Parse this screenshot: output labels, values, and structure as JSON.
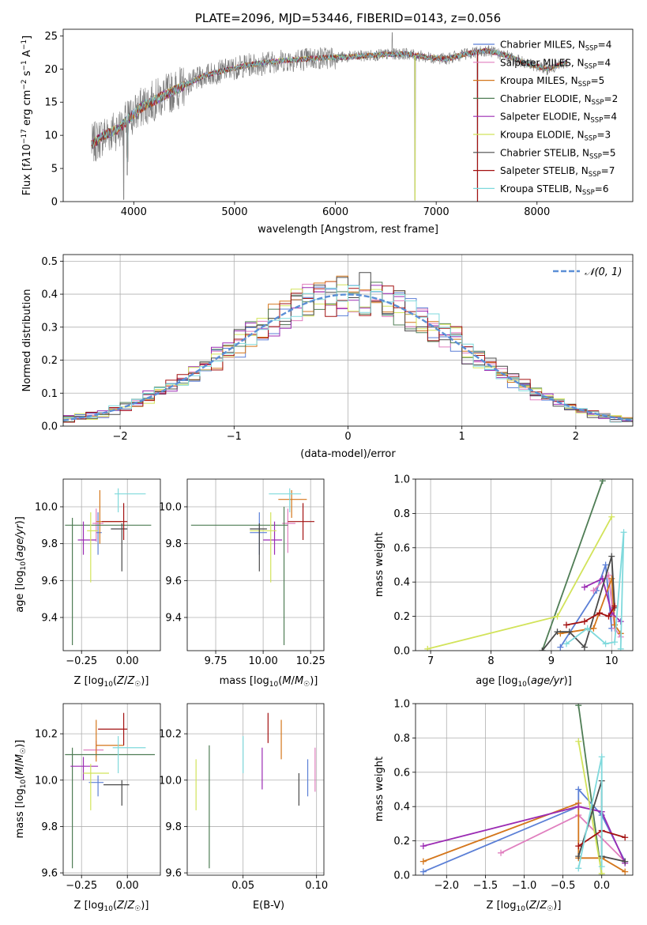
{
  "colors": {
    "Chabrier MILES": "#5b7fd6",
    "Salpeter MILES": "#e07fbf",
    "Kroupa MILES": "#d4761b",
    "Chabrier ELODIE": "#4f7d55",
    "Salpeter ELODIE": "#9b2bb3",
    "Kroupa ELODIE": "#d2e35a",
    "Chabrier STELIB": "#4a4a4a",
    "Salpeter STELIB": "#a31111",
    "Kroupa STELIB": "#7fd9dc",
    "normal": "#5b8fd6",
    "grid": "#b0b0b0"
  },
  "chart_data": [
    {
      "type": "line",
      "title": "PLATE=2096, MJD=53446, FIBERID=0143, z=0.056",
      "xlabel": "wavelength [Angstrom, rest frame]",
      "ylabel_parts": [
        "Flux [f",
        "λ",
        "10",
        "−17",
        " erg cm",
        "−2",
        " s",
        "−1",
        " A",
        "−1",
        "]"
      ],
      "xlim": [
        3300,
        8950
      ],
      "ylim": [
        0,
        26
      ],
      "xticks": [
        4000,
        5000,
        6000,
        7000,
        8000
      ],
      "xtick_labels": [
        "4000",
        "5000",
        "6000",
        "7000",
        "8000"
      ],
      "yticks": [
        0,
        5,
        10,
        15,
        20,
        25
      ],
      "ytick_labels": [
        "0",
        "5",
        "10",
        "15",
        "20",
        "25"
      ],
      "grid": false,
      "legend_position": "right",
      "legend": [
        {
          "name": "Chabrier MILES",
          "nssp": "4"
        },
        {
          "name": "Salpeter MILES",
          "nssp": "4"
        },
        {
          "name": "Kroupa MILES",
          "nssp": "5"
        },
        {
          "name": "Chabrier ELODIE",
          "nssp": "2"
        },
        {
          "name": "Salpeter ELODIE",
          "nssp": "4"
        },
        {
          "name": "Kroupa ELODIE",
          "nssp": "3"
        },
        {
          "name": "Chabrier STELIB",
          "nssp": "5"
        },
        {
          "name": "Salpeter STELIB",
          "nssp": "7"
        },
        {
          "name": "Kroupa STELIB",
          "nssp": "6"
        }
      ],
      "legend_sub": "SSP",
      "legend_prefix": "N",
      "continuum": {
        "x": [
          3580,
          3700,
          3850,
          3950,
          4100,
          4300,
          4500,
          4700,
          4900,
          5100,
          5300,
          5500,
          5700,
          5900,
          6100,
          6300,
          6500,
          6700,
          6900,
          7100,
          7300,
          7500,
          7700,
          7900,
          8100,
          8300
        ],
        "y": [
          8.5,
          10,
          11,
          12.5,
          14.5,
          16,
          17.5,
          19,
          19.8,
          20.5,
          21,
          21.3,
          21.5,
          21.7,
          21.8,
          22,
          22.2,
          22.3,
          21.8,
          21.5,
          22.3,
          22.8,
          22,
          20.8,
          20,
          21
        ]
      },
      "emission_features": [
        {
          "x": 5270,
          "y": 19
        },
        {
          "x": 6563,
          "y": 25.5
        }
      ],
      "absorption_features": [
        {
          "x": 3900,
          "y": 0.3
        },
        {
          "x": 3935,
          "y": 4
        },
        {
          "x": 6790,
          "y": 0.2
        },
        {
          "x": 7410,
          "y": 0
        }
      ]
    },
    {
      "type": "step",
      "xlabel": "(data-model)/error",
      "ylabel": "Normed distribution",
      "xlim": [
        -2.5,
        2.5
      ],
      "ylim": [
        0,
        0.52
      ],
      "xticks": [
        -2,
        -1,
        0,
        1,
        2
      ],
      "xtick_labels": [
        "−2",
        "−1",
        "0",
        "1",
        "2"
      ],
      "yticks": [
        0,
        0.1,
        0.2,
        0.3,
        0.4,
        0.5
      ],
      "ytick_labels": [
        "0.0",
        "0.1",
        "0.2",
        "0.3",
        "0.4",
        "0.5"
      ],
      "grid": true,
      "bin_width": 0.1,
      "legend_label": "𝒩(0, 1)",
      "legend_position": "top-right",
      "normal_curve": {
        "mean": 0,
        "sigma": 1
      }
    },
    {
      "type": "scatter",
      "xlabel": "Z [log10(Z/Z☉)]",
      "ylabel": "age [log10(age/yr)]",
      "xlim": [
        -0.35,
        0.18
      ],
      "ylim": [
        9.22,
        10.15
      ],
      "xticks": [
        -0.25,
        0
      ],
      "xtick_labels": [
        "−0.25",
        "0.00"
      ],
      "yticks": [
        9.4,
        9.6,
        9.8,
        10
      ],
      "ytick_labels": [
        "9.4",
        "9.6",
        "9.8",
        "10.0"
      ],
      "grid": true,
      "points": [
        {
          "model": "Chabrier MILES",
          "x": -0.16,
          "y": 9.86,
          "x0": -0.17,
          "x1": -0.14,
          "y0": 9.74,
          "y1": 9.97
        },
        {
          "model": "Salpeter MILES",
          "x": -0.17,
          "y": 9.91,
          "x0": -0.19,
          "x1": -0.13,
          "y0": 9.81,
          "y1": 9.99
        },
        {
          "model": "Kroupa MILES",
          "x": -0.15,
          "y": 9.92,
          "x0": -0.17,
          "x1": -0.03,
          "y0": 9.8,
          "y1": 10.09
        },
        {
          "model": "Chabrier ELODIE",
          "x": -0.3,
          "y": 9.9,
          "x0": -0.34,
          "x1": 0.13,
          "y0": 9.25,
          "y1": 9.94
        },
        {
          "model": "Salpeter ELODIE",
          "x": -0.24,
          "y": 9.82,
          "x0": -0.27,
          "x1": -0.17,
          "y0": 9.74,
          "y1": 9.92
        },
        {
          "model": "Kroupa ELODIE",
          "x": -0.2,
          "y": 9.87,
          "x0": -0.22,
          "x1": -0.16,
          "y0": 9.59,
          "y1": 9.97
        },
        {
          "model": "Chabrier STELIB",
          "x": -0.03,
          "y": 9.88,
          "x0": -0.09,
          "x1": 0.0,
          "y0": 9.65,
          "y1": 9.91
        },
        {
          "model": "Salpeter STELIB",
          "x": -0.02,
          "y": 9.92,
          "x0": -0.14,
          "x1": 0.0,
          "y0": 9.82,
          "y1": 10.02
        },
        {
          "model": "Kroupa STELIB",
          "x": -0.05,
          "y": 10.07,
          "x0": -0.07,
          "x1": 0.1,
          "y0": 9.97,
          "y1": 10.1
        }
      ]
    },
    {
      "type": "scatter",
      "xlabel": "mass [log10(M/M☉)]",
      "ylabel": "",
      "xlim": [
        9.6,
        10.32
      ],
      "ylim": [
        9.22,
        10.15
      ],
      "xticks": [
        9.75,
        10,
        10.25
      ],
      "xtick_labels": [
        "9.75",
        "10.00",
        "10.25"
      ],
      "yticks": [
        9.4,
        9.6,
        9.8,
        10
      ],
      "ytick_labels": [
        "9.4",
        "9.6",
        "9.8",
        "10.0"
      ],
      "grid": true,
      "points": [
        {
          "model": "Chabrier MILES",
          "x": 9.98,
          "y": 9.86,
          "x0": 9.93,
          "x1": 10.02,
          "y0": 9.74,
          "y1": 9.97
        },
        {
          "model": "Salpeter MILES",
          "x": 10.13,
          "y": 9.91,
          "x0": 10.1,
          "x1": 10.17,
          "y0": 9.75,
          "y1": 9.99
        },
        {
          "model": "Kroupa MILES",
          "x": 10.15,
          "y": 10.04,
          "x0": 10.08,
          "x1": 10.23,
          "y0": 9.94,
          "y1": 10.09
        },
        {
          "model": "Chabrier ELODIE",
          "x": 10.11,
          "y": 9.9,
          "x0": 9.62,
          "x1": 10.13,
          "y0": 9.25,
          "y1": 10.0
        },
        {
          "model": "Salpeter ELODIE",
          "x": 10.06,
          "y": 9.82,
          "x0": 10.0,
          "x1": 10.1,
          "y0": 9.74,
          "y1": 9.92
        },
        {
          "model": "Kroupa ELODIE",
          "x": 10.04,
          "y": 9.87,
          "x0": 9.93,
          "x1": 10.07,
          "y0": 9.59,
          "y1": 9.97
        },
        {
          "model": "Chabrier STELIB",
          "x": 9.98,
          "y": 9.88,
          "x0": 9.93,
          "x1": 10.02,
          "y0": 9.65,
          "y1": 9.91
        },
        {
          "model": "Salpeter STELIB",
          "x": 10.21,
          "y": 9.92,
          "x0": 10.13,
          "x1": 10.27,
          "y0": 9.82,
          "y1": 10.02
        },
        {
          "model": "Kroupa STELIB",
          "x": 10.14,
          "y": 10.07,
          "x0": 10.03,
          "x1": 10.2,
          "y0": 9.97,
          "y1": 10.1
        }
      ]
    },
    {
      "type": "line",
      "xlabel": "age [log10(age/yr)]",
      "ylabel": "mass weight",
      "xlim": [
        6.75,
        10.35
      ],
      "ylim": [
        0,
        1
      ],
      "xticks": [
        7,
        8,
        9,
        10
      ],
      "xtick_labels": [
        "7",
        "8",
        "9",
        "10"
      ],
      "yticks": [
        0,
        0.2,
        0.4,
        0.6,
        0.8,
        1
      ],
      "ytick_labels": [
        "0.0",
        "0.2",
        "0.4",
        "0.6",
        "0.8",
        "1.0"
      ],
      "grid": true,
      "marker": "+",
      "series": [
        {
          "model": "Chabrier MILES",
          "x": [
            9.15,
            9.75,
            9.9,
            10.0
          ],
          "y": [
            0.02,
            0.35,
            0.5,
            0.13
          ]
        },
        {
          "model": "Salpeter MILES",
          "x": [
            9.7,
            9.95,
            10.05,
            10.15
          ],
          "y": [
            0.35,
            0.44,
            0.13,
            0.08
          ]
        },
        {
          "model": "Kroupa MILES",
          "x": [
            9.15,
            9.7,
            10.0,
            10.05,
            10.15
          ],
          "y": [
            0.1,
            0.13,
            0.42,
            0.15,
            0.1
          ]
        },
        {
          "model": "Chabrier ELODIE",
          "x": [
            8.85,
            9.85
          ],
          "y": [
            0.0,
            0.99
          ]
        },
        {
          "model": "Salpeter ELODIE",
          "x": [
            9.55,
            9.85,
            10.0,
            10.15
          ],
          "y": [
            0.37,
            0.42,
            0.22,
            0.17
          ]
        },
        {
          "model": "Kroupa ELODIE",
          "x": [
            6.95,
            9.1,
            10.0
          ],
          "y": [
            0.01,
            0.2,
            0.78
          ]
        },
        {
          "model": "Chabrier STELIB",
          "x": [
            8.85,
            9.1,
            9.3,
            9.55,
            10.0,
            10.05
          ],
          "y": [
            0.0,
            0.11,
            0.11,
            0.02,
            0.55,
            0.25
          ]
        },
        {
          "model": "Salpeter STELIB",
          "x": [
            9.25,
            9.55,
            9.8,
            9.95,
            10.05
          ],
          "y": [
            0.15,
            0.17,
            0.22,
            0.2,
            0.26
          ]
        },
        {
          "model": "Kroupa STELIB",
          "x": [
            9.25,
            9.6,
            9.9,
            10.05,
            10.2,
            10.15
          ],
          "y": [
            0.04,
            0.13,
            0.04,
            0.05,
            0.69,
            0.01
          ]
        }
      ]
    },
    {
      "type": "scatter",
      "xlabel": "Z [log10(Z/Z☉)]",
      "ylabel": "mass [log10(M/M☉)]",
      "xlim": [
        -0.35,
        0.18
      ],
      "ylim": [
        9.59,
        10.33
      ],
      "xticks": [
        -0.25,
        0
      ],
      "xtick_labels": [
        "−0.25",
        "0.00"
      ],
      "yticks": [
        9.6,
        9.8,
        10,
        10.2
      ],
      "ytick_labels": [
        "9.6",
        "9.8",
        "10.0",
        "10.2"
      ],
      "grid": true,
      "points": [
        {
          "model": "Chabrier MILES",
          "x": -0.16,
          "y": 9.99,
          "x0": -0.21,
          "x1": -0.13,
          "y0": 9.93,
          "y1": 10.02
        },
        {
          "model": "Salpeter MILES",
          "x": -0.17,
          "y": 10.13,
          "x0": -0.24,
          "x1": -0.13,
          "y0": 10.1,
          "y1": 10.17
        },
        {
          "model": "Kroupa MILES",
          "x": -0.17,
          "y": 10.15,
          "x0": -0.17,
          "x1": -0.02,
          "y0": 10.08,
          "y1": 10.26
        },
        {
          "model": "Chabrier ELODIE",
          "x": -0.3,
          "y": 10.11,
          "x0": -0.34,
          "x1": 0.15,
          "y0": 9.62,
          "y1": 10.14
        },
        {
          "model": "Salpeter ELODIE",
          "x": -0.24,
          "y": 10.06,
          "x0": -0.31,
          "x1": -0.16,
          "y0": 10.0,
          "y1": 10.1
        },
        {
          "model": "Kroupa ELODIE",
          "x": -0.2,
          "y": 10.03,
          "x0": -0.24,
          "x1": -0.1,
          "y0": 9.87,
          "y1": 10.07
        },
        {
          "model": "Chabrier STELIB",
          "x": -0.03,
          "y": 9.98,
          "x0": -0.13,
          "x1": 0.01,
          "y0": 9.89,
          "y1": 10.0
        },
        {
          "model": "Salpeter STELIB",
          "x": -0.02,
          "y": 10.22,
          "x0": -0.16,
          "x1": 0.0,
          "y0": 10.15,
          "y1": 10.29
        },
        {
          "model": "Kroupa STELIB",
          "x": -0.05,
          "y": 10.14,
          "x0": -0.08,
          "x1": 0.1,
          "y0": 10.03,
          "y1": 10.19
        }
      ]
    },
    {
      "type": "errorbar",
      "xlabel": "E(B-V)",
      "ylabel": "",
      "xlim": [
        0.012,
        0.105
      ],
      "ylim": [
        9.59,
        10.33
      ],
      "xticks": [
        0.05,
        0.1
      ],
      "xtick_labels": [
        "0.05",
        "0.10"
      ],
      "yticks": [
        9.6,
        9.8,
        10,
        10.2
      ],
      "ytick_labels": [
        "9.6",
        "9.8",
        "10.0",
        "10.2"
      ],
      "grid": true,
      "points": [
        {
          "model": "Chabrier MILES",
          "x": 0.094,
          "y0": 9.93,
          "y1": 10.09
        },
        {
          "model": "Salpeter MILES",
          "x": 0.099,
          "y0": 9.95,
          "y1": 10.14
        },
        {
          "model": "Kroupa MILES",
          "x": 0.076,
          "y0": 10.09,
          "y1": 10.26
        },
        {
          "model": "Chabrier ELODIE",
          "x": 0.027,
          "y0": 9.62,
          "y1": 10.15
        },
        {
          "model": "Salpeter ELODIE",
          "x": 0.063,
          "y0": 9.96,
          "y1": 10.14
        },
        {
          "model": "Kroupa ELODIE",
          "x": 0.018,
          "y0": 9.87,
          "y1": 10.09
        },
        {
          "model": "Chabrier STELIB",
          "x": 0.088,
          "y0": 9.89,
          "y1": 10.03
        },
        {
          "model": "Salpeter STELIB",
          "x": 0.067,
          "y0": 10.16,
          "y1": 10.29
        },
        {
          "model": "Kroupa STELIB",
          "x": 0.05,
          "y0": 10.03,
          "y1": 10.19
        }
      ]
    },
    {
      "type": "line",
      "xlabel": "Z [log10(Z/Z☉)]",
      "ylabel": "mass weight",
      "xlim": [
        -2.4,
        0.4
      ],
      "ylim": [
        0,
        1
      ],
      "xticks": [
        -2,
        -1.5,
        -1,
        -0.5,
        0
      ],
      "xtick_labels": [
        "−2.0",
        "−1.5",
        "−1.0",
        "−0.5",
        "0.0"
      ],
      "yticks": [
        0,
        0.2,
        0.4,
        0.6,
        0.8,
        1
      ],
      "ytick_labels": [
        "0.0",
        "0.2",
        "0.4",
        "0.6",
        "0.8",
        "1.0"
      ],
      "grid": true,
      "marker": "+",
      "series": [
        {
          "model": "Chabrier MILES",
          "x": [
            -2.3,
            -0.3,
            -0.3,
            0.0,
            0.3
          ],
          "y": [
            0.02,
            0.4,
            0.5,
            0.35,
            0.08
          ]
        },
        {
          "model": "Salpeter MILES",
          "x": [
            -1.3,
            -0.3,
            0.3
          ],
          "y": [
            0.13,
            0.35,
            0.08
          ]
        },
        {
          "model": "Kroupa MILES",
          "x": [
            -2.3,
            -0.3,
            -0.3,
            0.0,
            0.3
          ],
          "y": [
            0.08,
            0.42,
            0.1,
            0.1,
            0.02
          ]
        },
        {
          "model": "Chabrier ELODIE",
          "x": [
            -0.3,
            0.0
          ],
          "y": [
            0.99,
            0.0
          ]
        },
        {
          "model": "Salpeter ELODIE",
          "x": [
            -2.3,
            -0.3,
            0.0,
            0.3
          ],
          "y": [
            0.17,
            0.4,
            0.37,
            0.07
          ]
        },
        {
          "model": "Kroupa ELODIE",
          "x": [
            -0.3,
            0.0
          ],
          "y": [
            0.78,
            0.01
          ]
        },
        {
          "model": "Chabrier STELIB",
          "x": [
            -0.3,
            0.0,
            0.0,
            0.3
          ],
          "y": [
            0.11,
            0.55,
            0.11,
            0.08
          ]
        },
        {
          "model": "Salpeter STELIB",
          "x": [
            -0.3,
            0.0,
            0.3
          ],
          "y": [
            0.17,
            0.26,
            0.22
          ]
        },
        {
          "model": "Kroupa STELIB",
          "x": [
            -0.3,
            0.0,
            0.0
          ],
          "y": [
            0.04,
            0.69,
            0.05
          ]
        }
      ]
    }
  ]
}
